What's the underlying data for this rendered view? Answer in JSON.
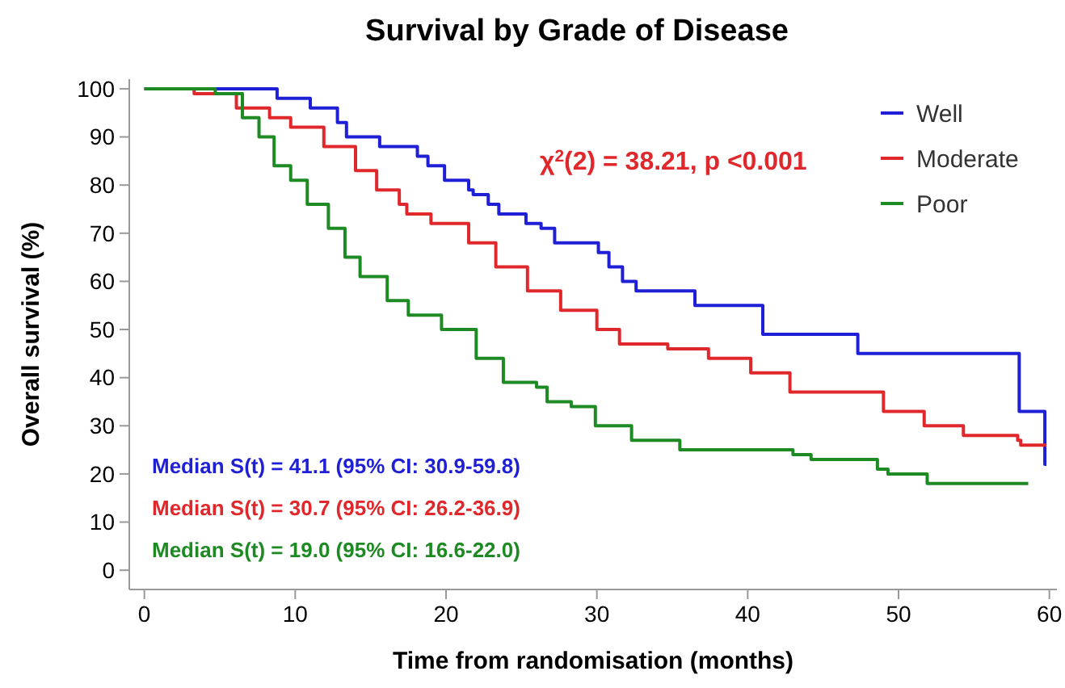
{
  "chart_data": {
    "type": "step",
    "title": "Survival by Grade of Disease",
    "xlabel": "Time from randomisation (months)",
    "ylabel": "Overall survival (%)",
    "xlim": [
      -1,
      60.5
    ],
    "ylim": [
      -4,
      102
    ],
    "xticks": [
      0,
      10,
      20,
      30,
      40,
      50,
      60
    ],
    "yticks": [
      0,
      10,
      20,
      30,
      40,
      50,
      60,
      70,
      80,
      90,
      100
    ],
    "grid": false,
    "legend": "top right",
    "series": [
      {
        "name": "Well",
        "color": "#1f1fd6",
        "x": [
          0,
          8.8,
          11,
          12.8,
          13.4,
          15.6,
          18.1,
          18.8,
          19.9,
          21.5,
          21.8,
          22.8,
          23.5,
          25.3,
          26.3,
          27.2,
          30.1,
          30.8,
          31.7,
          32.6,
          36.5,
          41,
          47.3,
          58,
          59.7,
          59.8
        ],
        "values": [
          100,
          98,
          96,
          93,
          90,
          88,
          86,
          84,
          81,
          79,
          78,
          76,
          74,
          72,
          71,
          68,
          66,
          63,
          60,
          58,
          55,
          49,
          45,
          33,
          22,
          22
        ]
      },
      {
        "name": "Moderate",
        "color": "#e0282c",
        "x": [
          0,
          3.3,
          6.1,
          8.3,
          9.7,
          11.9,
          14,
          15.4,
          16.9,
          17.4,
          19,
          21.5,
          23.3,
          25.4,
          27.6,
          30,
          31.5,
          34.7,
          37.4,
          40.2,
          42.8,
          47.2,
          49,
          51.7,
          54.3,
          57.9,
          58.1,
          59.8
        ],
        "values": [
          100,
          99,
          96,
          94,
          92,
          88,
          83,
          79,
          76,
          74,
          72,
          68,
          63,
          58,
          54,
          50,
          47,
          46,
          44,
          41,
          37,
          37,
          33,
          30,
          28,
          27,
          26,
          26
        ]
      },
      {
        "name": "Poor",
        "color": "#1e8a23",
        "x": [
          0,
          3.5,
          4.7,
          6.5,
          7.6,
          8.6,
          9.7,
          10.8,
          12.2,
          13.3,
          14.3,
          16.1,
          17.5,
          19.7,
          22,
          23.8,
          26,
          26.7,
          28.3,
          29.9,
          32.3,
          35.5,
          43,
          44.2,
          48.6,
          49.3,
          51.9,
          58.6
        ],
        "values": [
          100,
          100,
          99,
          94,
          90,
          84,
          81,
          76,
          71,
          65,
          61,
          56,
          53,
          50,
          44,
          39,
          38,
          35,
          34,
          30,
          27,
          25,
          24,
          23,
          21,
          20,
          18,
          18
        ]
      }
    ],
    "annotations": [
      "χ$^{2}$(2) = 38.21, p <0.001",
      "Median S(t) = 41.1 (95% CI: 30.9-59.8)",
      "Median S(t) = 30.7 (95% CI: 26.2-36.9)",
      "Median S(t) = 19.0 (95% CI: 16.6-22.0)"
    ]
  }
}
